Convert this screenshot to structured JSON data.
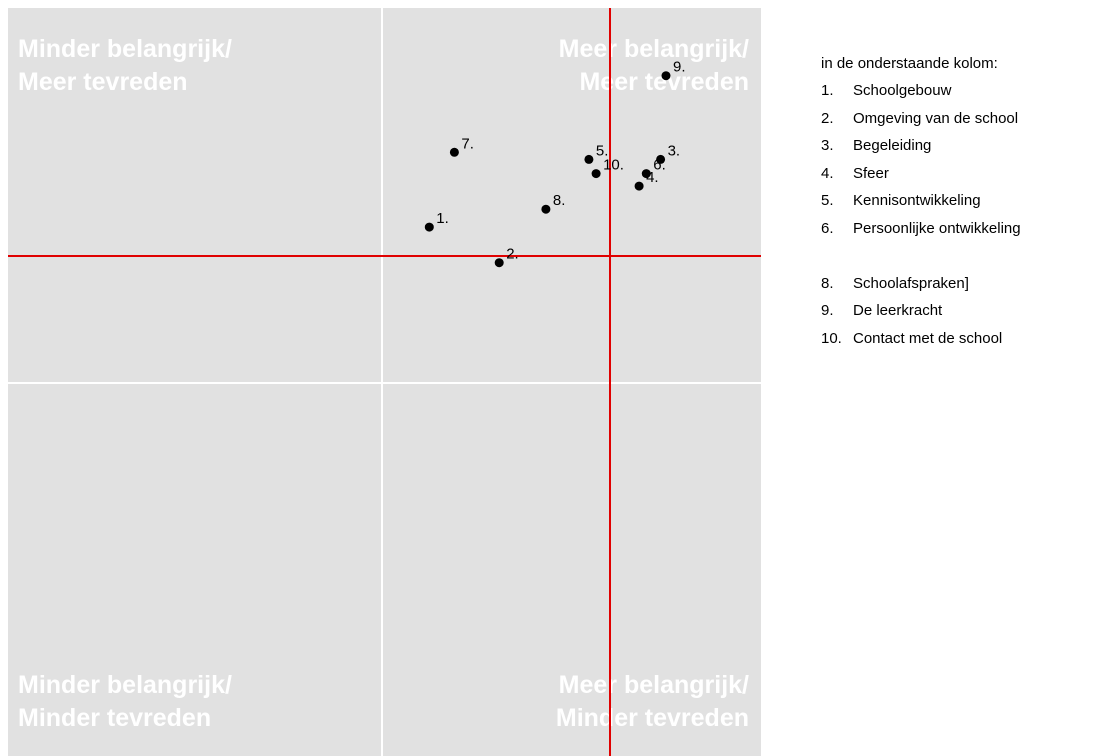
{
  "chart_data": {
    "type": "scatter",
    "title": "",
    "xlabel": "",
    "ylabel": "",
    "xlim": [
      -3.0,
      1.2
    ],
    "ylim": [
      -3.0,
      1.2
    ],
    "grid": true,
    "reference_lines": {
      "x": 0,
      "y": 0,
      "color": "#e00000"
    },
    "quadrant_labels": {
      "top_left": [
        "Minder belangrijk/",
        "Meer tevreden"
      ],
      "top_right": [
        "Meer belangrijk/",
        "Meer tevreden"
      ],
      "bottom_left": [
        "Minder belangrijk/",
        "Minder tevreden"
      ],
      "bottom_right": [
        "Meer belangrijk/",
        "Minder tevreden"
      ]
    },
    "points": [
      {
        "label": "1.",
        "x": -0.65,
        "y": -0.03
      },
      {
        "label": "2.",
        "x": -0.26,
        "y": -0.23
      },
      {
        "label": "3.",
        "x": 0.64,
        "y": 0.35
      },
      {
        "label": "4.",
        "x": 0.52,
        "y": 0.2
      },
      {
        "label": "5.",
        "x": 0.24,
        "y": 0.35
      },
      {
        "label": "6.",
        "x": 0.56,
        "y": 0.27
      },
      {
        "label": "7.",
        "x": -0.51,
        "y": 0.39
      },
      {
        "label": "8.",
        "x": 0.0,
        "y": 0.07
      },
      {
        "label": "9.",
        "x": 0.67,
        "y": 0.82
      },
      {
        "label": "10.",
        "x": 0.28,
        "y": 0.27
      }
    ]
  },
  "legend": {
    "title": "in de onderstaande kolom:",
    "items": [
      {
        "num": "1.",
        "label": "Schoolgebouw"
      },
      {
        "num": "2.",
        "label": "Omgeving van de school"
      },
      {
        "num": "3.",
        "label": "Begeleiding"
      },
      {
        "num": "4.",
        "label": "Sfeer"
      },
      {
        "num": "5.",
        "label": "Kennisontwikkeling"
      },
      {
        "num": "6.",
        "label": "Persoonlijke ontwikkeling"
      },
      {
        "num": "",
        "label": ""
      },
      {
        "num": "8.",
        "label": "Schoolafspraken]"
      },
      {
        "num": "9.",
        "label": "De leerkracht"
      },
      {
        "num": "10.",
        "label": "Contact met de school"
      }
    ]
  },
  "colors": {
    "plot_background": "#e1e1e1",
    "grid": "#ffffff",
    "reference_line": "#e00000",
    "point": "#000000",
    "quadrant_text": "#ffffff"
  }
}
